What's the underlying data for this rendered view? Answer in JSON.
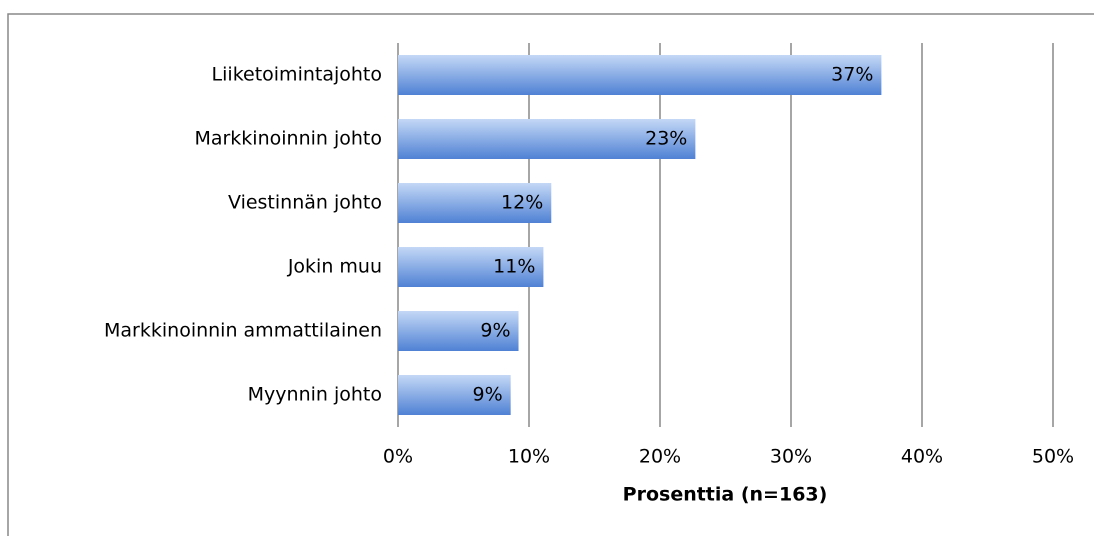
{
  "chart_data": {
    "type": "bar",
    "orientation": "horizontal",
    "x_label": "Prosenttia (n=163)",
    "categories": [
      "Liiketoimintajohto",
      "Markkinoinnin johto",
      "Viestinnän johto",
      "Jokin muu",
      "Markkinoinnin ammattilainen",
      "Myynnin johto"
    ],
    "values": [
      36.9,
      22.7,
      11.7,
      11.1,
      9.2,
      8.6
    ],
    "value_labels": [
      "37%",
      "23%",
      "12%",
      "11%",
      "9%",
      "9%"
    ],
    "color": "#4f81d4",
    "xlim": [
      0,
      50
    ],
    "xticks": [
      {
        "value": 0,
        "label": "0%"
      },
      {
        "value": 10,
        "label": "10%"
      },
      {
        "value": 20,
        "label": "20%"
      },
      {
        "value": 30,
        "label": "30%"
      },
      {
        "value": 40,
        "label": "40%"
      },
      {
        "value": 50,
        "label": "50%"
      }
    ],
    "grid": true
  }
}
